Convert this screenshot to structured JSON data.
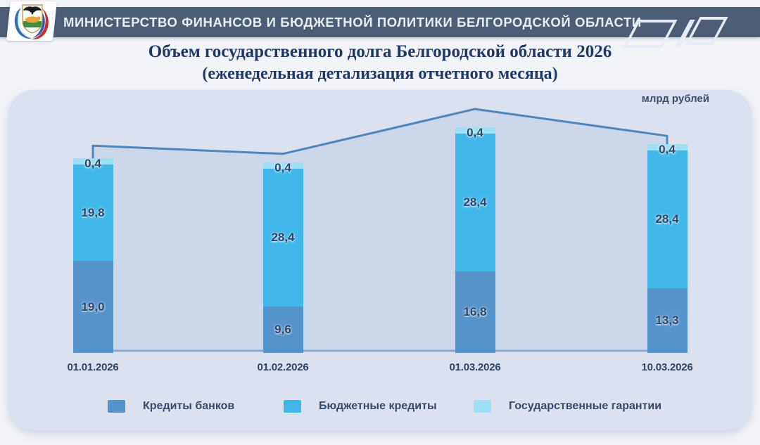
{
  "header": {
    "title": "МИНИСТЕРСТВО ФИНАНСОВ И БЮДЖЕТНОЙ ПОЛИТИКИ БЕЛГОРОДСКОЙ ОБЛАСТИ"
  },
  "title": {
    "line1": "Объем государственного долга Белгородской области 2026",
    "line2": "(еженедельная детализация отчетного месяца)"
  },
  "chart_data": {
    "type": "bar",
    "stacked": true,
    "title": "Объем государственного долга Белгородской области 2026 (еженедельная детализация отчетного месяца)",
    "unit_label": "млрд рублей",
    "categories": [
      "01.01.2026",
      "01.02.2026",
      "01.03.2026",
      "10.03.2026"
    ],
    "series": [
      {
        "name": "Кредиты банков",
        "color": "#5593cb",
        "values": [
          19.0,
          9.6,
          16.8,
          13.3
        ]
      },
      {
        "name": "Бюджетные кредиты",
        "color": "#41b7e9",
        "values": [
          19.8,
          28.4,
          28.4,
          28.4
        ]
      },
      {
        "name": "Государственные гарантии",
        "color": "#9edff5",
        "values": [
          0.4,
          0.4,
          0.4,
          0.4
        ]
      }
    ],
    "totals": [
      39.2,
      38.4,
      45.6,
      42.1
    ],
    "total_line": {
      "color": "#4e86bd",
      "area_fill": "#cdd7ea",
      "baseline_color": "#84a9d6"
    },
    "decimal_separator": ",",
    "legend_position": "bottom",
    "grid": false,
    "plot_background": "#dce1ef"
  }
}
